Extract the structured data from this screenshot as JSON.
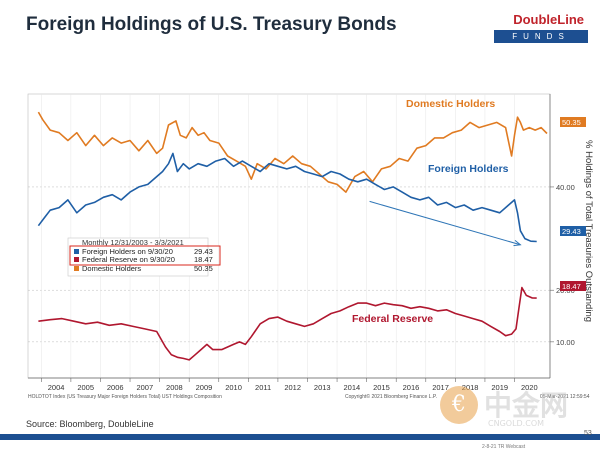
{
  "title": "Foreign Holdings of U.S. Treasury Bonds",
  "logo": {
    "name": "DoubleLine",
    "sub": "FUNDS"
  },
  "source": "Source: Bloomberg, DoubleLine",
  "page_number": "53",
  "footer_date": "2-8-21 TR Webcast",
  "watermark": {
    "cn": "中金网",
    "url": "CNGOLD.COM"
  },
  "colors": {
    "domestic": "#e07b22",
    "foreign": "#1f5fa6",
    "fed": "#b0172f",
    "axis": "#666666",
    "brand_red": "#c0232b",
    "brand_blue": "#1d4f91"
  },
  "chart_data": {
    "type": "line",
    "ylabel": "% Holdings of Total Treasuries Outstanding",
    "ylim": [
      3,
      58
    ],
    "xlim": [
      2003.55,
      2021.2
    ],
    "y_ticks": [
      "10.00",
      "20.00",
      "40.00"
    ],
    "x_ticks": [
      "2004",
      "2005",
      "2006",
      "2007",
      "2008",
      "2009",
      "2010",
      "2011",
      "2012",
      "2013",
      "2014",
      "2015",
      "2016",
      "2017",
      "2018",
      "2019",
      "2020"
    ],
    "legend": {
      "placement": "center-left",
      "header": "Monthly 12/31/2003 - 3/3/2021",
      "entries": [
        {
          "name": "Foreign Holders on 9/30/20",
          "value": "29.43"
        },
        {
          "name": "Federal Reserve on 9/30/20",
          "value": "18.47"
        },
        {
          "name": "Domestic Holders",
          "value": "50.35"
        }
      ]
    },
    "annotations": [
      "Domestic Holders",
      "Foreign Holders",
      "Federal Reserve"
    ],
    "value_tags": {
      "domestic": "50.35",
      "foreign": "29.43",
      "fed": "18.47"
    },
    "trend_arrow": {
      "from": [
        2015.1,
        37.2
      ],
      "to": [
        2020.2,
        28.8
      ]
    },
    "footer_left": "HOLDTOT Index (US Treasury Major Foreign Holders Total) UST Holdings Composition",
    "footer_right": "Copyright© 2021 Bloomberg Finance L.P.",
    "footer_stamp": "05-Mar-2021 12:59:54",
    "series": [
      {
        "name": "Domestic Holders",
        "color": "#e07b22",
        "x": [
          2003.9,
          2004.05,
          2004.3,
          2004.6,
          2004.9,
          2005.2,
          2005.5,
          2005.8,
          2006.1,
          2006.4,
          2006.7,
          2007.0,
          2007.3,
          2007.6,
          2007.9,
          2008.1,
          2008.3,
          2008.55,
          2008.7,
          2008.9,
          2009.1,
          2009.3,
          2009.5,
          2009.7,
          2010.0,
          2010.3,
          2010.6,
          2010.9,
          2011.1,
          2011.3,
          2011.6,
          2011.9,
          2012.2,
          2012.5,
          2012.8,
          2013.1,
          2013.4,
          2013.7,
          2014.0,
          2014.3,
          2014.6,
          2014.9,
          2015.2,
          2015.5,
          2015.8,
          2016.1,
          2016.4,
          2016.7,
          2017.0,
          2017.3,
          2017.6,
          2017.9,
          2018.2,
          2018.5,
          2018.8,
          2019.1,
          2019.4,
          2019.7,
          2019.9,
          2020.0,
          2020.1,
          2020.2,
          2020.3,
          2020.5,
          2020.7,
          2020.9,
          2021.1
        ],
        "y": [
          54.5,
          53.0,
          51.0,
          50.5,
          49.0,
          50.5,
          48.0,
          50.0,
          48.0,
          49.5,
          48.5,
          49.0,
          47.0,
          49.0,
          46.5,
          47.5,
          52.0,
          52.8,
          50.0,
          49.5,
          51.5,
          50.0,
          50.5,
          49.0,
          48.5,
          46.0,
          45.0,
          44.0,
          41.5,
          44.5,
          43.5,
          45.5,
          44.5,
          46.0,
          44.5,
          44.0,
          42.5,
          41.0,
          40.5,
          39.0,
          42.0,
          43.0,
          41.0,
          43.5,
          44.0,
          45.5,
          45.0,
          47.5,
          48.0,
          49.5,
          49.5,
          50.5,
          51.0,
          52.5,
          51.5,
          52.0,
          52.5,
          51.5,
          46.0,
          50.0,
          53.5,
          52.5,
          51.0,
          51.5,
          51.0,
          51.5,
          50.35
        ]
      },
      {
        "name": "Foreign Holders",
        "color": "#1f5fa6",
        "x": [
          2003.9,
          2004.1,
          2004.3,
          2004.6,
          2004.9,
          2005.2,
          2005.5,
          2005.8,
          2006.1,
          2006.4,
          2006.7,
          2007.0,
          2007.3,
          2007.6,
          2007.9,
          2008.1,
          2008.3,
          2008.45,
          2008.6,
          2008.8,
          2009.0,
          2009.3,
          2009.6,
          2009.9,
          2010.2,
          2010.5,
          2010.8,
          2011.1,
          2011.4,
          2011.7,
          2012.0,
          2012.3,
          2012.6,
          2012.9,
          2013.2,
          2013.5,
          2013.8,
          2014.1,
          2014.4,
          2014.7,
          2015.0,
          2015.3,
          2015.6,
          2015.9,
          2016.2,
          2016.5,
          2016.8,
          2017.1,
          2017.4,
          2017.7,
          2018.0,
          2018.3,
          2018.6,
          2018.9,
          2019.2,
          2019.5,
          2019.8,
          2020.0,
          2020.1,
          2020.2,
          2020.35,
          2020.55,
          2020.75
        ],
        "y": [
          32.5,
          34.0,
          35.5,
          36.0,
          37.5,
          35.0,
          36.5,
          37.0,
          38.0,
          38.5,
          37.5,
          39.0,
          40.0,
          40.5,
          42.0,
          43.0,
          44.5,
          46.5,
          43.0,
          44.5,
          43.5,
          44.5,
          44.0,
          45.0,
          45.5,
          44.0,
          45.0,
          44.0,
          43.0,
          44.5,
          44.0,
          43.5,
          44.0,
          43.0,
          42.5,
          42.0,
          43.0,
          42.5,
          41.5,
          41.0,
          41.5,
          40.5,
          39.5,
          40.0,
          39.0,
          38.0,
          37.5,
          38.0,
          36.5,
          37.0,
          36.0,
          36.5,
          35.5,
          36.0,
          35.5,
          35.0,
          36.5,
          37.5,
          35.0,
          31.5,
          30.0,
          29.5,
          29.43
        ]
      },
      {
        "name": "Federal Reserve",
        "color": "#b0172f",
        "x": [
          2003.9,
          2004.3,
          2004.7,
          2005.1,
          2005.5,
          2005.9,
          2006.3,
          2006.7,
          2007.1,
          2007.5,
          2007.9,
          2008.2,
          2008.4,
          2008.6,
          2008.8,
          2009.0,
          2009.2,
          2009.4,
          2009.6,
          2009.8,
          2010.1,
          2010.3,
          2010.5,
          2010.7,
          2010.9,
          2011.1,
          2011.4,
          2011.7,
          2012.0,
          2012.3,
          2012.6,
          2012.9,
          2013.2,
          2013.5,
          2013.8,
          2014.1,
          2014.4,
          2014.7,
          2015.0,
          2015.3,
          2015.6,
          2015.9,
          2016.2,
          2016.5,
          2016.8,
          2017.1,
          2017.4,
          2017.7,
          2018.0,
          2018.3,
          2018.6,
          2018.9,
          2019.2,
          2019.5,
          2019.7,
          2019.9,
          2020.05,
          2020.15,
          2020.25,
          2020.4,
          2020.6,
          2020.75
        ],
        "y": [
          14.0,
          14.3,
          14.5,
          14.0,
          13.5,
          13.8,
          13.2,
          13.5,
          13.0,
          12.5,
          12.0,
          9.0,
          7.5,
          7.0,
          6.8,
          6.5,
          7.5,
          8.5,
          9.5,
          8.5,
          8.5,
          9.0,
          9.5,
          10.0,
          9.5,
          11.0,
          13.5,
          14.5,
          14.8,
          14.0,
          13.5,
          13.0,
          13.5,
          14.5,
          15.5,
          16.0,
          16.8,
          17.5,
          17.5,
          17.0,
          17.5,
          17.2,
          17.0,
          16.5,
          16.8,
          16.5,
          16.0,
          16.2,
          15.5,
          15.0,
          14.5,
          14.0,
          13.0,
          12.0,
          11.2,
          11.5,
          12.5,
          16.5,
          20.5,
          19.0,
          18.5,
          18.47
        ]
      }
    ]
  }
}
